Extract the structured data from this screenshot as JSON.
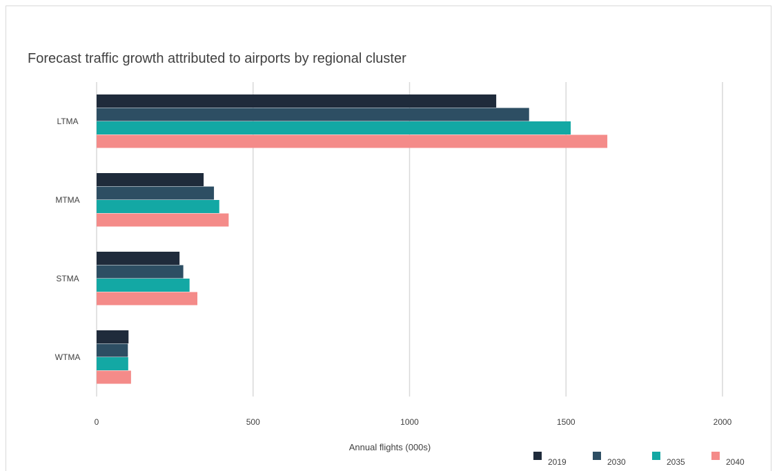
{
  "chart_data": {
    "type": "bar",
    "orientation": "horizontal",
    "title": "Forecast traffic growth attributed to airports by regional cluster",
    "xlabel": "Annual flights (000s)",
    "ylabel": "",
    "categories": [
      "LTMA",
      "MTMA",
      "STMA",
      "WTMA"
    ],
    "xlim": [
      0,
      2000
    ],
    "xticks": [
      "0",
      "500",
      "1000",
      "1500",
      "2000"
    ],
    "xtick_values": [
      0,
      500,
      1000,
      1500,
      2000
    ],
    "grid": true,
    "legend_position": "bottom-right",
    "series": [
      {
        "name": "2019",
        "color": "#1f2b3b",
        "values": [
          1277,
          342,
          265,
          102
        ]
      },
      {
        "name": "2030",
        "color": "#2d4e63",
        "values": [
          1382,
          375,
          277,
          100
        ]
      },
      {
        "name": "2035",
        "color": "#13a8a4",
        "values": [
          1515,
          392,
          297,
          101
        ]
      },
      {
        "name": "2040",
        "color": "#f48b89",
        "values": [
          1632,
          422,
          322,
          110
        ]
      }
    ]
  }
}
